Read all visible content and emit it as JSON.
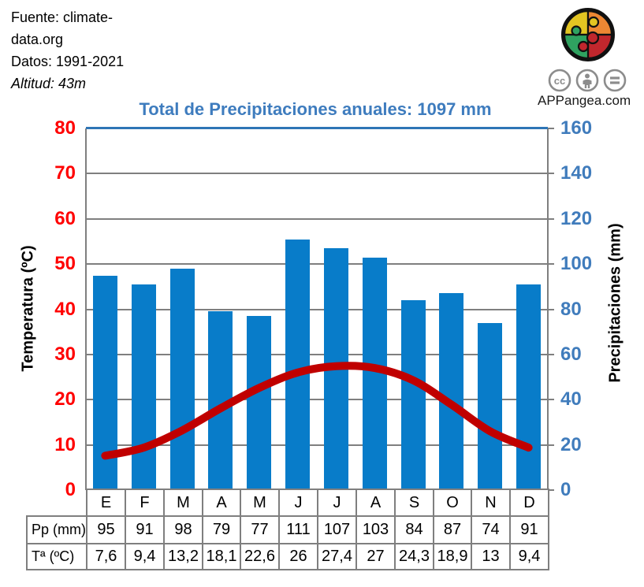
{
  "header": {
    "source_lines": [
      "Fuente: climate-",
      "data.org",
      "Datos: 1991-2021"
    ],
    "altitude": "Altitud: 43m",
    "brand": "APPangea.com",
    "license_icons": [
      "cc-icon",
      "attribution-icon",
      "equals-nd-icon"
    ],
    "logo_colors": {
      "yellow": "#e3c522",
      "orange": "#ed8733",
      "green": "#2fa260",
      "red": "#c1272d",
      "outline": "#111111"
    }
  },
  "title": "Total de Precipitaciones anuales: 1097 mm",
  "chart_data": {
    "type": "bar",
    "subtype": "climograph (bar + smooth line, dual axis)",
    "categories": [
      "E",
      "F",
      "M",
      "A",
      "M",
      "J",
      "J",
      "A",
      "S",
      "O",
      "N",
      "D"
    ],
    "series": [
      {
        "name": "Pp (mm)",
        "type": "bar",
        "axis": "right",
        "color": "#087cc9",
        "values": [
          95,
          91,
          98,
          79,
          77,
          111,
          107,
          103,
          84,
          87,
          74,
          91
        ]
      },
      {
        "name": "Tª (ºC)",
        "type": "line",
        "axis": "left",
        "color": "#c00000",
        "values": [
          7.6,
          9.4,
          13.2,
          18.1,
          22.6,
          26,
          27.4,
          27,
          24.3,
          18.9,
          13,
          9.4
        ]
      }
    ],
    "title": "Total de Precipitaciones anuales: 1097 mm",
    "left_axis": {
      "label": "Temperatura (ºC)",
      "min": 0,
      "max": 80,
      "step": 10,
      "tick_color": "#ff0000"
    },
    "right_axis": {
      "label": "Precipitaciones (mm)",
      "min": 0,
      "max": 160,
      "step": 20,
      "tick_color": "#407cbc"
    },
    "grid": true,
    "gridline_color": "#7f7f7f",
    "top_border_color": "#2e75b6",
    "legend": "none"
  },
  "table": {
    "row_headers": [
      "Pp (mm)",
      "Tª (ºC)"
    ],
    "columns": [
      "E",
      "F",
      "M",
      "A",
      "M",
      "J",
      "J",
      "A",
      "S",
      "O",
      "N",
      "D"
    ],
    "rows": [
      [
        "95",
        "91",
        "98",
        "79",
        "77",
        "111",
        "107",
        "103",
        "84",
        "87",
        "74",
        "91"
      ],
      [
        "7,6",
        "9,4",
        "13,2",
        "18,1",
        "22,6",
        "26",
        "27,4",
        "27",
        "24,3",
        "18,9",
        "13",
        "9,4"
      ]
    ]
  }
}
